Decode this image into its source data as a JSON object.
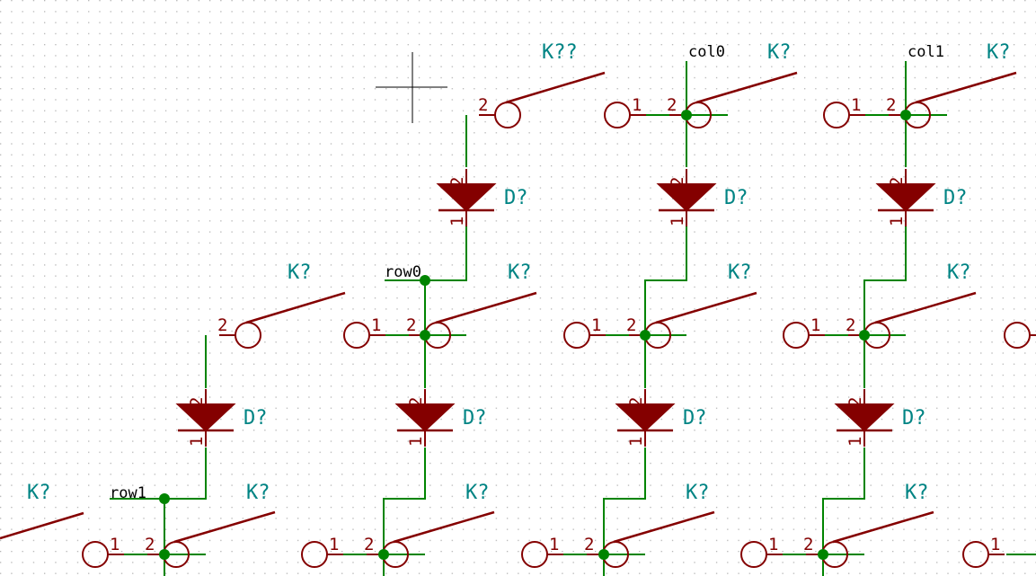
{
  "colors": {
    "background": "#ffffff",
    "grid_dot": "#b4b4b4",
    "wire": "#008400",
    "junction": "#008400",
    "component": "#840000",
    "component_fill": "#840000",
    "reference": "#008484",
    "net_label": "#000000",
    "cursor": "#000000"
  },
  "cursor": {
    "icon": "crosshair-cursor-icon"
  },
  "net_labels": {
    "col0": "col0",
    "col1": "col1",
    "row0": "row0",
    "row1": "row1"
  },
  "references": {
    "switch_first": "K??",
    "switch": "K?",
    "diode": "D?"
  },
  "pins": {
    "one": "1",
    "two": "2"
  }
}
